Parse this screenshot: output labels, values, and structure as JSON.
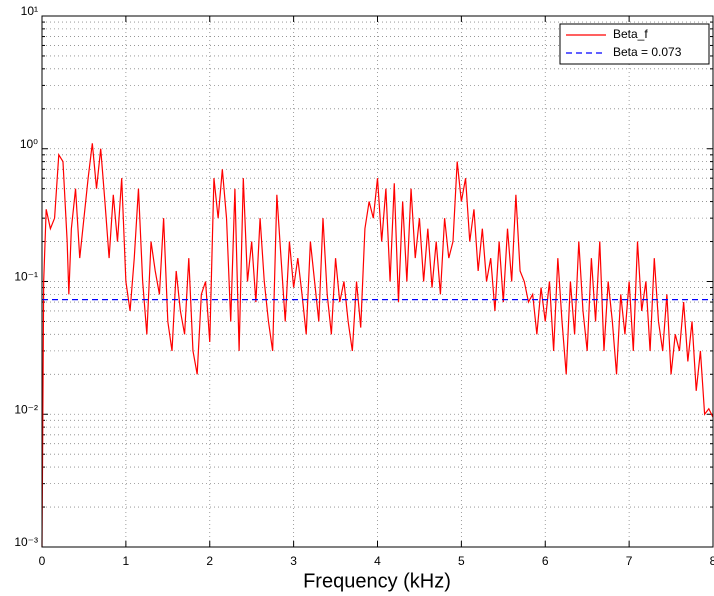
{
  "chart_data": {
    "type": "line",
    "xlabel": "Frequency (kHz)",
    "xlim": [
      0,
      8
    ],
    "xticks": [
      0,
      1,
      2,
      3,
      4,
      5,
      6,
      7,
      8
    ],
    "ylim": [
      0.001,
      10
    ],
    "log_y": true,
    "yticks": [
      {
        "value": 0.001,
        "label": "10⁻³"
      },
      {
        "value": 0.01,
        "label": "10⁻²"
      },
      {
        "value": 0.1,
        "label": "10⁻¹"
      },
      {
        "value": 1,
        "label": "10⁰"
      },
      {
        "value": 10,
        "label": "10¹"
      }
    ],
    "yminorticks": [
      0.002,
      0.003,
      0.004,
      0.005,
      0.006,
      0.007,
      0.008,
      0.009,
      0.02,
      0.03,
      0.04,
      0.05,
      0.06,
      0.07,
      0.08,
      0.09,
      0.2,
      0.3,
      0.4,
      0.5,
      0.6,
      0.7,
      0.8,
      0.9,
      2,
      3,
      4,
      5,
      6,
      7,
      8,
      9
    ],
    "grid": true,
    "legend": "top-right",
    "series": [
      {
        "name": "Beta_f",
        "color": "#ff0000",
        "style": "solid",
        "x": [
          0,
          0.02,
          0.05,
          0.1,
          0.15,
          0.2,
          0.25,
          0.3,
          0.32,
          0.35,
          0.4,
          0.45,
          0.5,
          0.55,
          0.6,
          0.65,
          0.7,
          0.75,
          0.8,
          0.85,
          0.9,
          0.95,
          1.0,
          1.05,
          1.1,
          1.15,
          1.2,
          1.25,
          1.3,
          1.35,
          1.4,
          1.45,
          1.5,
          1.55,
          1.6,
          1.65,
          1.7,
          1.75,
          1.8,
          1.85,
          1.9,
          1.95,
          2.0,
          2.05,
          2.1,
          2.15,
          2.2,
          2.25,
          2.3,
          2.35,
          2.4,
          2.45,
          2.5,
          2.55,
          2.6,
          2.65,
          2.7,
          2.75,
          2.8,
          2.85,
          2.9,
          2.95,
          3.0,
          3.05,
          3.1,
          3.15,
          3.2,
          3.25,
          3.3,
          3.35,
          3.4,
          3.45,
          3.5,
          3.55,
          3.6,
          3.65,
          3.7,
          3.75,
          3.8,
          3.85,
          3.9,
          3.95,
          4.0,
          4.05,
          4.1,
          4.15,
          4.2,
          4.25,
          4.3,
          4.35,
          4.4,
          4.45,
          4.5,
          4.55,
          4.6,
          4.65,
          4.7,
          4.75,
          4.8,
          4.85,
          4.9,
          4.95,
          5.0,
          5.05,
          5.1,
          5.15,
          5.2,
          5.25,
          5.3,
          5.35,
          5.4,
          5.45,
          5.5,
          5.55,
          5.6,
          5.65,
          5.7,
          5.75,
          5.8,
          5.85,
          5.9,
          5.95,
          6.0,
          6.05,
          6.1,
          6.15,
          6.2,
          6.25,
          6.3,
          6.35,
          6.4,
          6.45,
          6.5,
          6.55,
          6.6,
          6.65,
          6.7,
          6.75,
          6.8,
          6.85,
          6.9,
          6.95,
          7.0,
          7.05,
          7.1,
          7.15,
          7.2,
          7.25,
          7.3,
          7.35,
          7.4,
          7.45,
          7.5,
          7.55,
          7.6,
          7.65,
          7.7,
          7.75,
          7.8,
          7.85,
          7.9,
          7.95,
          8.0
        ],
        "values": [
          0.001,
          0.1,
          0.35,
          0.25,
          0.3,
          0.9,
          0.8,
          0.2,
          0.08,
          0.25,
          0.5,
          0.15,
          0.3,
          0.6,
          1.1,
          0.5,
          1.0,
          0.4,
          0.15,
          0.45,
          0.2,
          0.6,
          0.1,
          0.06,
          0.15,
          0.5,
          0.1,
          0.04,
          0.2,
          0.12,
          0.08,
          0.3,
          0.05,
          0.03,
          0.12,
          0.06,
          0.04,
          0.15,
          0.03,
          0.02,
          0.08,
          0.1,
          0.035,
          0.6,
          0.3,
          0.7,
          0.3,
          0.05,
          0.5,
          0.03,
          0.6,
          0.1,
          0.2,
          0.07,
          0.3,
          0.1,
          0.05,
          0.03,
          0.45,
          0.15,
          0.05,
          0.2,
          0.09,
          0.15,
          0.08,
          0.04,
          0.2,
          0.1,
          0.05,
          0.3,
          0.08,
          0.04,
          0.15,
          0.07,
          0.1,
          0.05,
          0.03,
          0.1,
          0.045,
          0.25,
          0.4,
          0.3,
          0.6,
          0.2,
          0.5,
          0.1,
          0.55,
          0.07,
          0.4,
          0.1,
          0.5,
          0.15,
          0.3,
          0.1,
          0.25,
          0.09,
          0.2,
          0.08,
          0.3,
          0.15,
          0.2,
          0.8,
          0.4,
          0.6,
          0.2,
          0.35,
          0.12,
          0.25,
          0.1,
          0.15,
          0.06,
          0.2,
          0.07,
          0.25,
          0.1,
          0.45,
          0.12,
          0.1,
          0.07,
          0.08,
          0.04,
          0.09,
          0.05,
          0.1,
          0.03,
          0.15,
          0.05,
          0.02,
          0.1,
          0.04,
          0.2,
          0.06,
          0.03,
          0.15,
          0.05,
          0.2,
          0.03,
          0.1,
          0.05,
          0.02,
          0.08,
          0.04,
          0.1,
          0.03,
          0.2,
          0.06,
          0.1,
          0.03,
          0.15,
          0.05,
          0.03,
          0.08,
          0.02,
          0.04,
          0.03,
          0.07,
          0.025,
          0.05,
          0.015,
          0.03,
          0.01,
          0.011,
          0.0095
        ]
      },
      {
        "name": "Beta = 0.073",
        "color": "#0000ff",
        "style": "dashed",
        "x": [
          0,
          8
        ],
        "values": [
          0.073,
          0.073
        ]
      }
    ]
  }
}
